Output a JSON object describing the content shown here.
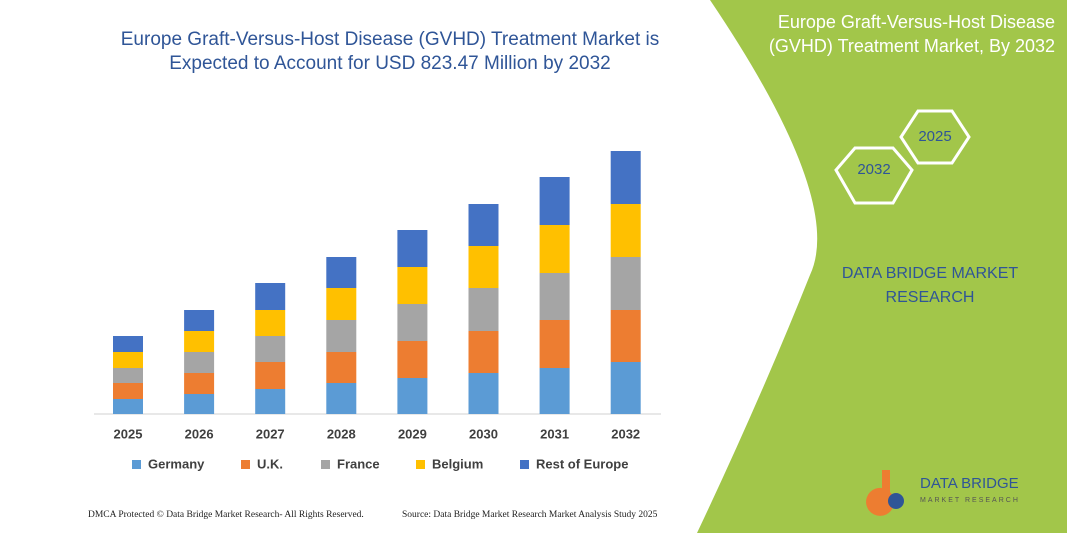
{
  "chart_data": {
    "type": "stacked-bar",
    "title": "Europe  Graft-Versus-Host Disease (GVHD) Treatment Market is Expected to Account for USD 823.47 Million by 2032",
    "categories": [
      "2025",
      "2026",
      "2027",
      "2028",
      "2029",
      "2030",
      "2031",
      "2032"
    ],
    "series": [
      {
        "name": "Germany",
        "color": "#5b9bd5",
        "values": [
          15,
          20,
          25,
          31,
          36,
          41,
          46,
          52
        ]
      },
      {
        "name": "U.K.",
        "color": "#ed7d31",
        "values": [
          16,
          21,
          27,
          31,
          37,
          42,
          48,
          52
        ]
      },
      {
        "name": "France",
        "color": "#a5a5a5",
        "values": [
          15,
          21,
          26,
          32,
          37,
          43,
          47,
          53
        ]
      },
      {
        "name": "Belgium",
        "color": "#ffc000",
        "values": [
          16,
          21,
          26,
          32,
          37,
          42,
          48,
          53
        ]
      },
      {
        "name": "Rest of Europe",
        "color": "#4472c4",
        "values": [
          16,
          21,
          27,
          31,
          37,
          42,
          48,
          53
        ]
      }
    ],
    "ylim": [
      0,
      263
    ]
  },
  "panel": {
    "title": "Europe  Graft-Versus-Host Disease (GVHD) Treatment Market, By 2032",
    "hex_back": "2025",
    "hex_front": "2032",
    "brand": "DATA BRIDGE MARKET RESEARCH"
  },
  "logo": {
    "name": "DATA BRIDGE",
    "tagline": "MARKET RESEARCH"
  },
  "footer": {
    "copyright": "DMCA Protected © Data Bridge Market Research- All Rights Reserved.",
    "source": "Source: Data Bridge Market Research Market Analysis Study 2025"
  }
}
